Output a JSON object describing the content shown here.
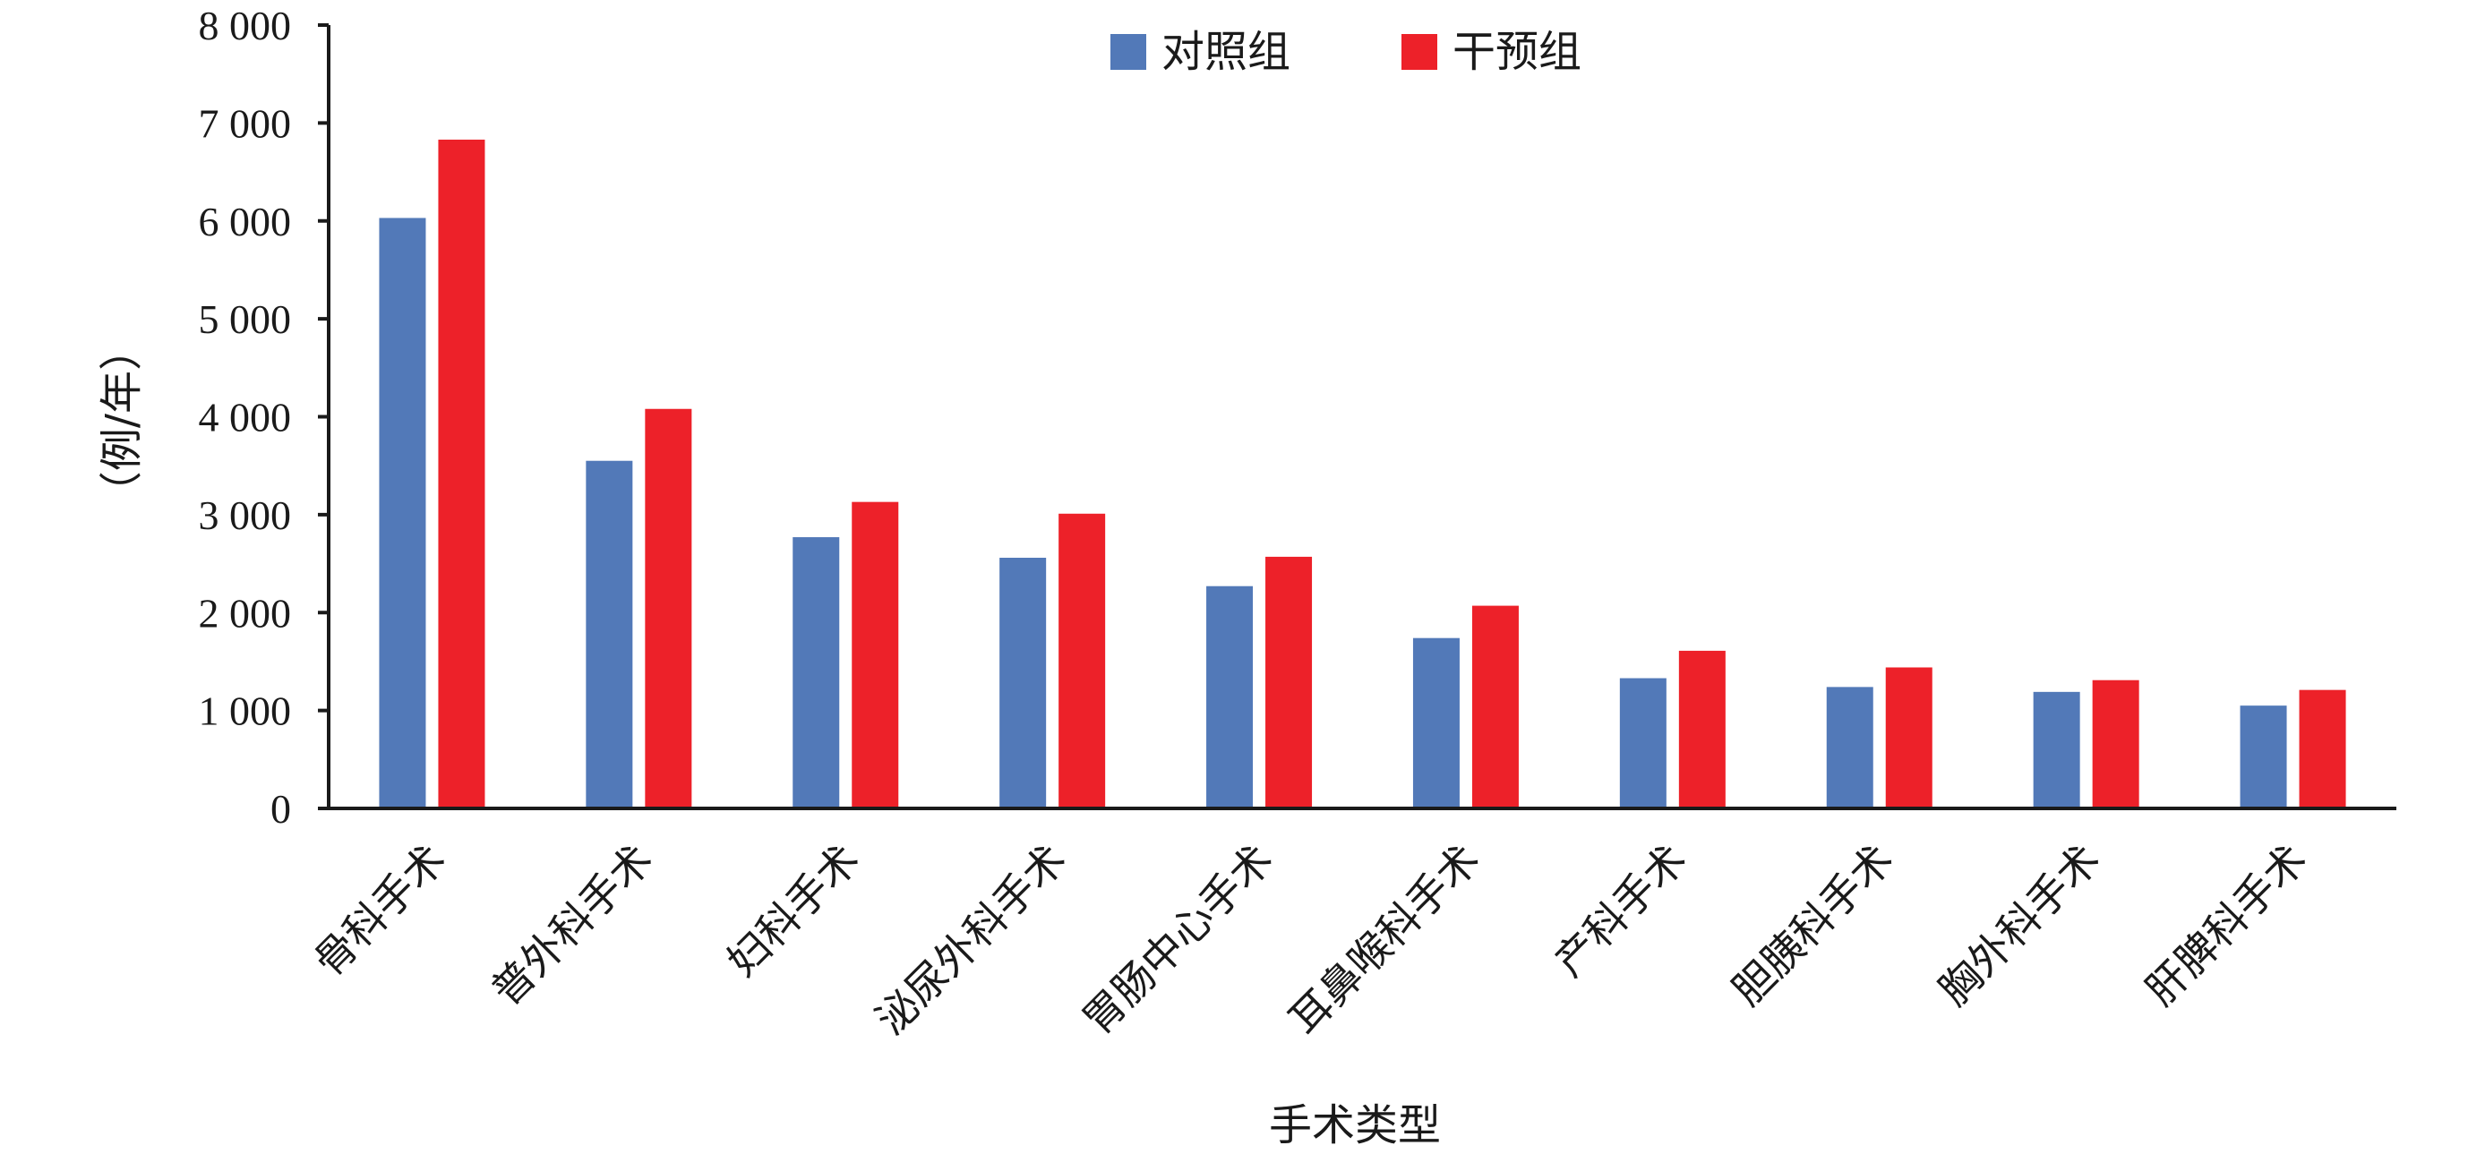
{
  "chart_data": {
    "type": "bar",
    "title": "",
    "xlabel": "手术类型",
    "ylabel": "（例/年）",
    "ylim": [
      0,
      8000
    ],
    "y_ticks": [
      0,
      1000,
      2000,
      3000,
      4000,
      5000,
      6000,
      7000,
      8000
    ],
    "y_tick_labels": [
      "0",
      "1 000",
      "2 000",
      "3 000",
      "4 000",
      "5 000",
      "6 000",
      "7 000",
      "8 000"
    ],
    "categories": [
      "骨科手术",
      "普外科手术",
      "妇科手术",
      "泌尿外科手术",
      "胃肠中心手术",
      "耳鼻喉科手术",
      "产科手术",
      "胆胰科手术",
      "胸外科手术",
      "肝脾科手术"
    ],
    "series": [
      {
        "name": "对照组",
        "color": "#5279b8",
        "values": [
          6030,
          3550,
          2770,
          2560,
          2270,
          1740,
          1330,
          1240,
          1190,
          1050
        ]
      },
      {
        "name": "干预组",
        "color": "#ed2129",
        "values": [
          6830,
          4080,
          3130,
          3010,
          2570,
          2070,
          1610,
          1440,
          1310,
          1210
        ]
      }
    ],
    "legend_position": "top-center",
    "grid": false
  }
}
